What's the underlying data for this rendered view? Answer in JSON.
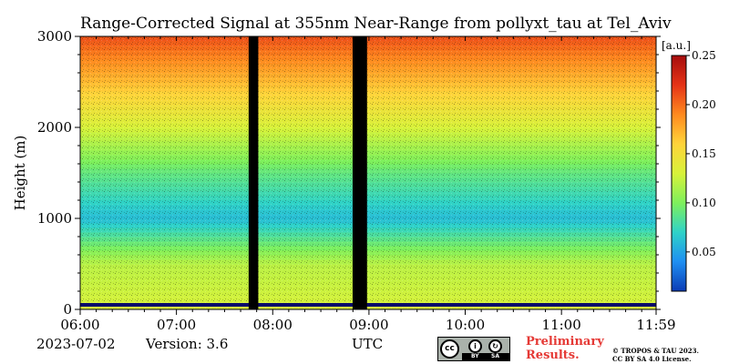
{
  "chart_data": {
    "type": "heatmap",
    "title": "Range-Corrected Signal at 355nm Near-Range from pollyxt_tau at Tel_Aviv",
    "xlabel": "UTC",
    "ylabel": "Height (m)",
    "x_ticks": [
      "06:00",
      "07:00",
      "08:00",
      "09:00",
      "10:00",
      "11:00",
      "11:59"
    ],
    "x_tick_hours": [
      6.0,
      7.0,
      8.0,
      9.0,
      10.0,
      11.0,
      11.983
    ],
    "xlim_hours": [
      6.0,
      11.983
    ],
    "y_ticks": [
      "0",
      "1000",
      "2000",
      "3000"
    ],
    "y_tick_values": [
      0,
      1000,
      2000,
      3000
    ],
    "ylim": [
      0,
      3000
    ],
    "colorbar": {
      "unit": "[a.u.]",
      "ticks": [
        "0.05",
        "0.10",
        "0.15",
        "0.20",
        "0.25"
      ],
      "tick_values": [
        0.05,
        0.1,
        0.15,
        0.2,
        0.25
      ],
      "range": [
        0.01,
        0.25
      ],
      "colormap": [
        "#0b3cb5",
        "#1f8ff2",
        "#2fd3c8",
        "#7ef05c",
        "#d8f23a",
        "#ffd43a",
        "#ff8a1f",
        "#e53317",
        "#a60d0d"
      ]
    },
    "gaps_hours": [
      [
        7.75,
        7.85
      ],
      [
        8.83,
        8.98
      ]
    ],
    "mean_signal_profile": [
      {
        "height": 0,
        "value": 0.13
      },
      {
        "height": 500,
        "value": 0.12
      },
      {
        "height": 1000,
        "value": 0.06
      },
      {
        "height": 1500,
        "value": 0.09
      },
      {
        "height": 2000,
        "value": 0.13
      },
      {
        "height": 2500,
        "value": 0.17
      },
      {
        "height": 3000,
        "value": 0.21
      }
    ],
    "grid": false
  },
  "footer": {
    "date": "2023-07-02",
    "version": "Version: 3.6",
    "preliminary_line1": "Preliminary",
    "preliminary_line2": "Results.",
    "copyright_line1": "© TROPOS & TAU 2023.",
    "copyright_line2": "CC BY SA 4.0 License.",
    "license_badge": {
      "cc": "cc",
      "by": "BY",
      "sa": "SA"
    }
  }
}
